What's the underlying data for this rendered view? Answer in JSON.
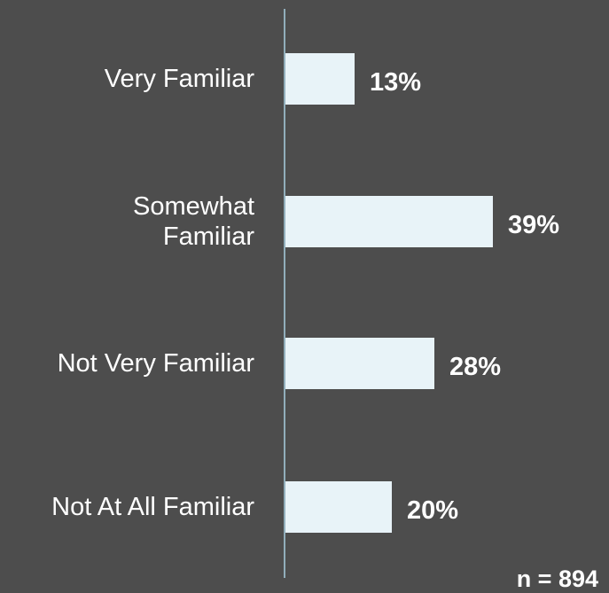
{
  "colors": {
    "background": "#4d4d4d",
    "bar": "#e8f3f8",
    "axis_line": "#a8cfe0",
    "text": "#ffffff"
  },
  "chart_data": {
    "type": "bar",
    "orientation": "horizontal",
    "categories": [
      "Very Familiar",
      "Somewhat Familiar",
      "Not Very Familiar",
      "Not At All Familiar"
    ],
    "values": [
      13,
      39,
      28,
      20
    ],
    "value_labels": [
      "13%",
      "39%",
      "28%",
      "20%"
    ],
    "unit": "%",
    "xlim": [
      0,
      60
    ],
    "grid": false,
    "legend": "none"
  },
  "note": "n = 894"
}
